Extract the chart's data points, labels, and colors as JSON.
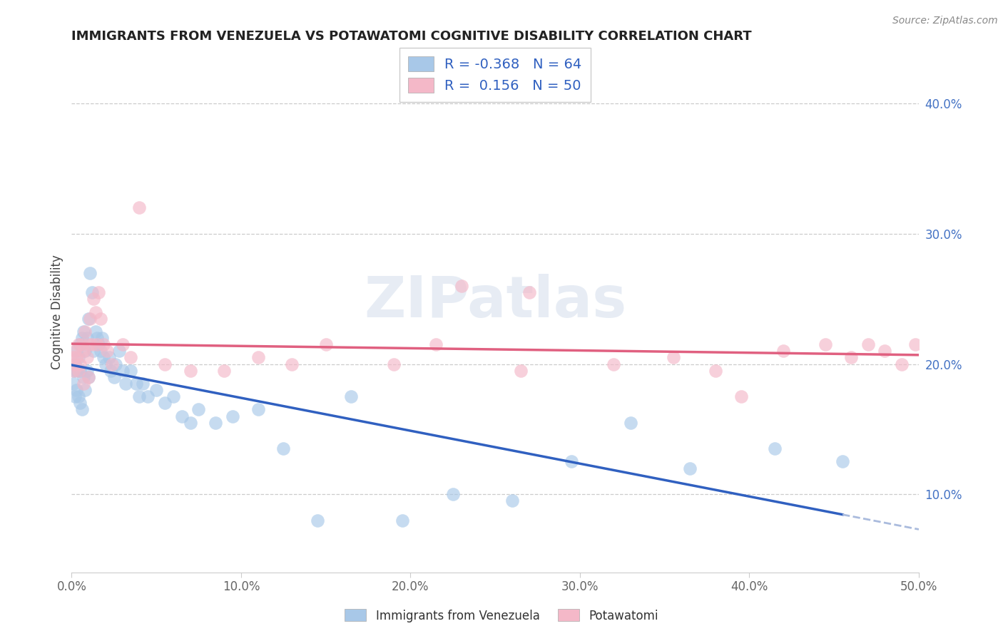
{
  "title": "IMMIGRANTS FROM VENEZUELA VS POTAWATOMI COGNITIVE DISABILITY CORRELATION CHART",
  "source_text": "Source: ZipAtlas.com",
  "xlabel_blue": "Immigrants from Venezuela",
  "xlabel_pink": "Potawatomi",
  "ylabel": "Cognitive Disability",
  "xlim": [
    0.0,
    0.5
  ],
  "ylim": [
    0.04,
    0.44
  ],
  "xticks": [
    0.0,
    0.1,
    0.2,
    0.3,
    0.4,
    0.5
  ],
  "yticks": [
    0.1,
    0.2,
    0.3,
    0.4
  ],
  "r_blue": -0.368,
  "n_blue": 64,
  "r_pink": 0.156,
  "n_pink": 50,
  "color_blue": "#a8c8e8",
  "color_pink": "#f4b8c8",
  "trendline_blue": "#3060c0",
  "trendline_pink": "#e06080",
  "trendline_blue_dashed": "#aabbdd",
  "watermark": "ZIPatlas",
  "blue_scatter_x": [
    0.001,
    0.001,
    0.002,
    0.002,
    0.003,
    0.003,
    0.003,
    0.004,
    0.004,
    0.005,
    0.005,
    0.005,
    0.006,
    0.006,
    0.007,
    0.007,
    0.008,
    0.008,
    0.009,
    0.009,
    0.01,
    0.01,
    0.011,
    0.012,
    0.013,
    0.014,
    0.015,
    0.016,
    0.017,
    0.018,
    0.019,
    0.02,
    0.022,
    0.023,
    0.025,
    0.026,
    0.028,
    0.03,
    0.032,
    0.035,
    0.038,
    0.04,
    0.042,
    0.045,
    0.05,
    0.055,
    0.06,
    0.065,
    0.07,
    0.075,
    0.085,
    0.095,
    0.11,
    0.125,
    0.145,
    0.165,
    0.195,
    0.225,
    0.26,
    0.295,
    0.33,
    0.365,
    0.415,
    0.455
  ],
  "blue_scatter_y": [
    0.195,
    0.185,
    0.2,
    0.175,
    0.21,
    0.195,
    0.18,
    0.205,
    0.175,
    0.215,
    0.195,
    0.17,
    0.22,
    0.165,
    0.225,
    0.19,
    0.21,
    0.18,
    0.22,
    0.195,
    0.235,
    0.19,
    0.27,
    0.255,
    0.21,
    0.225,
    0.22,
    0.215,
    0.21,
    0.22,
    0.205,
    0.2,
    0.205,
    0.195,
    0.19,
    0.2,
    0.21,
    0.195,
    0.185,
    0.195,
    0.185,
    0.175,
    0.185,
    0.175,
    0.18,
    0.17,
    0.175,
    0.16,
    0.155,
    0.165,
    0.155,
    0.16,
    0.165,
    0.135,
    0.08,
    0.175,
    0.08,
    0.1,
    0.095,
    0.125,
    0.155,
    0.12,
    0.135,
    0.125
  ],
  "pink_scatter_x": [
    0.001,
    0.001,
    0.002,
    0.002,
    0.003,
    0.004,
    0.004,
    0.005,
    0.006,
    0.007,
    0.007,
    0.008,
    0.009,
    0.01,
    0.01,
    0.011,
    0.012,
    0.013,
    0.014,
    0.015,
    0.016,
    0.017,
    0.019,
    0.021,
    0.024,
    0.03,
    0.035,
    0.04,
    0.055,
    0.07,
    0.09,
    0.11,
    0.13,
    0.15,
    0.19,
    0.215,
    0.23,
    0.265,
    0.27,
    0.32,
    0.355,
    0.38,
    0.395,
    0.42,
    0.445,
    0.46,
    0.47,
    0.48,
    0.49,
    0.498
  ],
  "pink_scatter_y": [
    0.205,
    0.195,
    0.2,
    0.21,
    0.205,
    0.215,
    0.195,
    0.2,
    0.215,
    0.21,
    0.185,
    0.225,
    0.205,
    0.215,
    0.19,
    0.235,
    0.215,
    0.25,
    0.24,
    0.215,
    0.255,
    0.235,
    0.215,
    0.21,
    0.2,
    0.215,
    0.205,
    0.32,
    0.2,
    0.195,
    0.195,
    0.205,
    0.2,
    0.215,
    0.2,
    0.215,
    0.26,
    0.195,
    0.255,
    0.2,
    0.205,
    0.195,
    0.175,
    0.21,
    0.215,
    0.205,
    0.215,
    0.21,
    0.2,
    0.215
  ]
}
